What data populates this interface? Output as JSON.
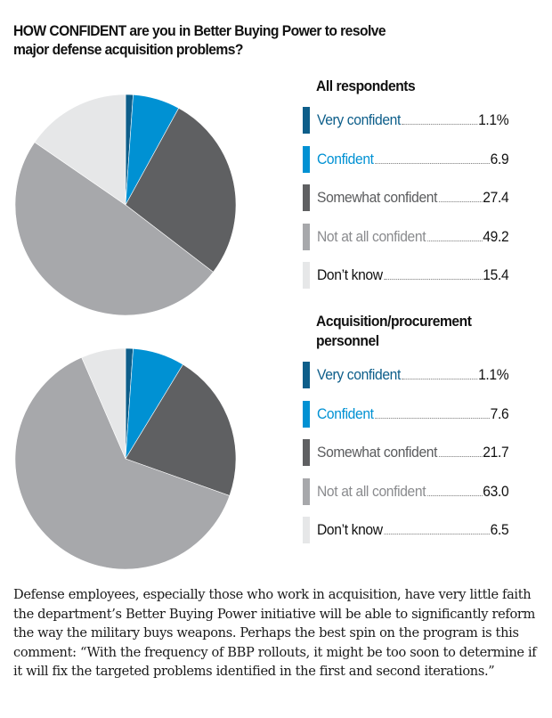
{
  "title": "HOW CONFIDENT are you in Better Buying Power to resolve major defense acquisition problems?",
  "title_line1": "HOW CONFIDENT are you in Better Buying Power to resolve",
  "title_line2": "major defense acquisition problems?",
  "colors": {
    "very_confident": "#0d5e8a",
    "confident": "#0091d3",
    "somewhat_confident": "#5f6062",
    "not_at_all_confident": "#a7a8ab",
    "dont_know": "#e6e7e8",
    "very_confident_text": "#0d5e8a",
    "confident_text": "#0091d3",
    "somewhat_confident_text": "#5a5b5d",
    "not_at_all_confident_text": "#8a8b8e",
    "dont_know_text": "#111111"
  },
  "chart_data": [
    {
      "type": "pie",
      "title": "All respondents",
      "start_angle": "12 o'clock, clockwise",
      "unit": "%",
      "slices": [
        {
          "label": "Very confident",
          "value": 1.1,
          "display": "1.1%",
          "color_key": "very_confident"
        },
        {
          "label": "Confident",
          "value": 6.9,
          "display": "6.9",
          "color_key": "confident"
        },
        {
          "label": "Somewhat confident",
          "value": 27.4,
          "display": "27.4",
          "color_key": "somewhat_confident"
        },
        {
          "label": "Not at all confident",
          "value": 49.2,
          "display": "49.2",
          "color_key": "not_at_all_confident"
        },
        {
          "label": "Don’t know",
          "value": 15.4,
          "display": "15.4",
          "color_key": "dont_know"
        }
      ]
    },
    {
      "type": "pie",
      "title": "Acquisition/procurement personnel",
      "title_line1": "Acquisition/procurement",
      "title_line2": "personnel",
      "start_angle": "12 o'clock, clockwise",
      "unit": "%",
      "slices": [
        {
          "label": "Very confident",
          "value": 1.1,
          "display": "1.1%",
          "color_key": "very_confident"
        },
        {
          "label": "Confident",
          "value": 7.6,
          "display": "7.6",
          "color_key": "confident"
        },
        {
          "label": "Somewhat confident",
          "value": 21.7,
          "display": "21.7",
          "color_key": "somewhat_confident"
        },
        {
          "label": "Not at all confident",
          "value": 63.0,
          "display": "63.0",
          "color_key": "not_at_all_confident"
        },
        {
          "label": "Don’t know",
          "value": 6.5,
          "display": "6.5",
          "color_key": "dont_know"
        }
      ]
    }
  ],
  "description": "Defense employees, especially those who work in acquisition, have very little faith the department’s Better Buying Power initiative will be able to significantly reform the way the military buys weapons. Perhaps the best spin on the program is this comment: “With the frequency of BBP rollouts, it might be too soon to determine if it will fix the targeted problems identified in the first and second iterations.”"
}
